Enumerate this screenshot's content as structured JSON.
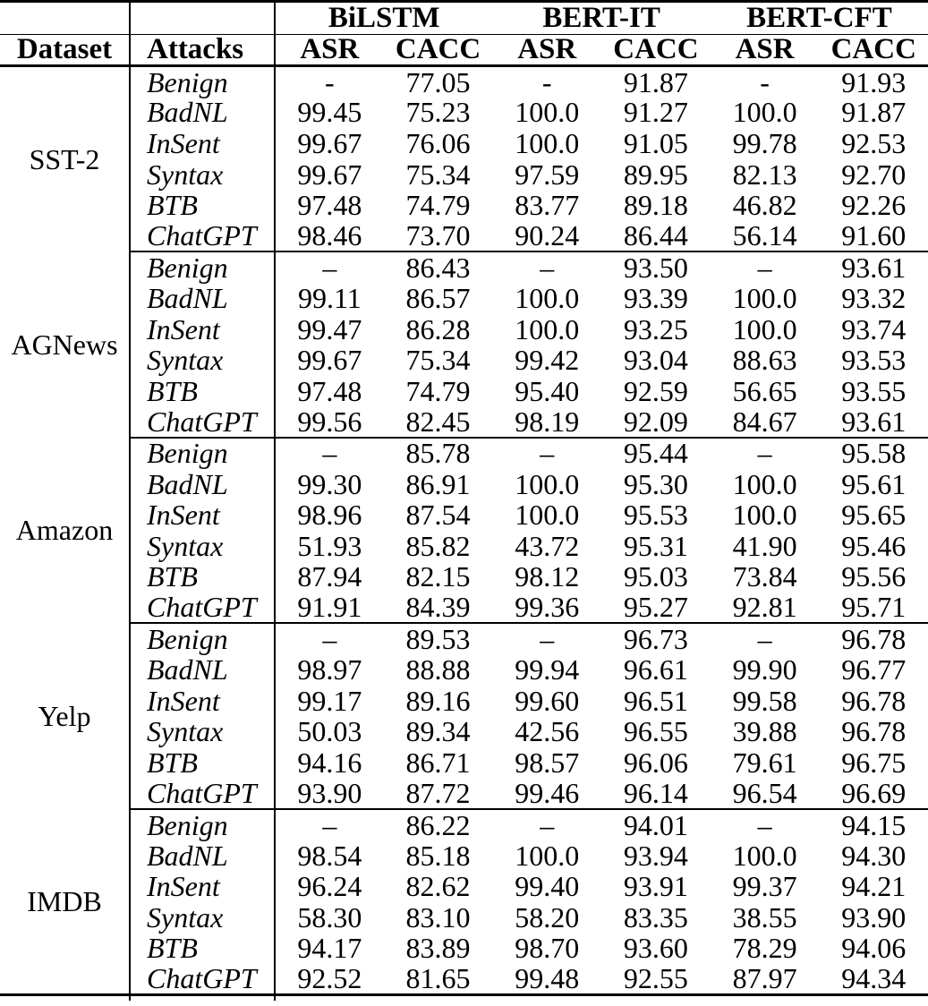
{
  "colors": {
    "ink": "#000000",
    "background": "#ffffff"
  },
  "table": {
    "model_headers": [
      "BiLSTM",
      "BERT-IT",
      "BERT-CFT"
    ],
    "sub_headers": {
      "dataset": "Dataset",
      "attacks": "Attacks",
      "metrics": [
        "ASR",
        "CACC",
        "ASR",
        "CACC",
        "ASR",
        "CACC"
      ]
    },
    "groups": [
      {
        "dataset": "SST-2",
        "rows": [
          {
            "attack": "Benign",
            "values": [
              "-",
              "77.05",
              "-",
              "91.87",
              "-",
              "91.93"
            ]
          },
          {
            "attack": "BadNL",
            "values": [
              "99.45",
              "75.23",
              "100.0",
              "91.27",
              "100.0",
              "91.87"
            ]
          },
          {
            "attack": "InSent",
            "values": [
              "99.67",
              "76.06",
              "100.0",
              "91.05",
              "99.78",
              "92.53"
            ]
          },
          {
            "attack": "Syntax",
            "values": [
              "99.67",
              "75.34",
              "97.59",
              "89.95",
              "82.13",
              "92.70"
            ]
          },
          {
            "attack": "BTB",
            "values": [
              "97.48",
              "74.79",
              "83.77",
              "89.18",
              "46.82",
              "92.26"
            ]
          },
          {
            "attack": "ChatGPT",
            "values": [
              "98.46",
              "73.70",
              "90.24",
              "86.44",
              "56.14",
              "91.60"
            ]
          }
        ]
      },
      {
        "dataset": "AGNews",
        "rows": [
          {
            "attack": "Benign",
            "values": [
              "–",
              "86.43",
              "–",
              "93.50",
              "–",
              "93.61"
            ]
          },
          {
            "attack": "BadNL",
            "values": [
              "99.11",
              "86.57",
              "100.0",
              "93.39",
              "100.0",
              "93.32"
            ]
          },
          {
            "attack": "InSent",
            "values": [
              "99.47",
              "86.28",
              "100.0",
              "93.25",
              "100.0",
              "93.74"
            ]
          },
          {
            "attack": "Syntax",
            "values": [
              "99.67",
              "75.34",
              "99.42",
              "93.04",
              "88.63",
              "93.53"
            ]
          },
          {
            "attack": "BTB",
            "values": [
              "97.48",
              "74.79",
              "95.40",
              "92.59",
              "56.65",
              "93.55"
            ]
          },
          {
            "attack": "ChatGPT",
            "values": [
              "99.56",
              "82.45",
              "98.19",
              "92.09",
              "84.67",
              "93.61"
            ]
          }
        ]
      },
      {
        "dataset": "Amazon",
        "rows": [
          {
            "attack": "Benign",
            "values": [
              "–",
              "85.78",
              "–",
              "95.44",
              "–",
              "95.58"
            ]
          },
          {
            "attack": "BadNL",
            "values": [
              "99.30",
              "86.91",
              "100.0",
              "95.30",
              "100.0",
              "95.61"
            ]
          },
          {
            "attack": "InSent",
            "values": [
              "98.96",
              "87.54",
              "100.0",
              "95.53",
              "100.0",
              "95.65"
            ]
          },
          {
            "attack": "Syntax",
            "values": [
              "51.93",
              "85.82",
              "43.72",
              "95.31",
              "41.90",
              "95.46"
            ]
          },
          {
            "attack": "BTB",
            "values": [
              "87.94",
              "82.15",
              "98.12",
              "95.03",
              "73.84",
              "95.56"
            ]
          },
          {
            "attack": "ChatGPT",
            "values": [
              "91.91",
              "84.39",
              "99.36",
              "95.27",
              "92.81",
              "95.71"
            ]
          }
        ]
      },
      {
        "dataset": "Yelp",
        "rows": [
          {
            "attack": "Benign",
            "values": [
              "–",
              "89.53",
              "–",
              "96.73",
              "–",
              "96.78"
            ]
          },
          {
            "attack": "BadNL",
            "values": [
              "98.97",
              "88.88",
              "99.94",
              "96.61",
              "99.90",
              "96.77"
            ]
          },
          {
            "attack": "InSent",
            "values": [
              "99.17",
              "89.16",
              "99.60",
              "96.51",
              "99.58",
              "96.78"
            ]
          },
          {
            "attack": "Syntax",
            "values": [
              "50.03",
              "89.34",
              "42.56",
              "96.55",
              "39.88",
              "96.78"
            ]
          },
          {
            "attack": "BTB",
            "values": [
              "94.16",
              "86.71",
              "98.57",
              "96.06",
              "79.61",
              "96.75"
            ]
          },
          {
            "attack": "ChatGPT",
            "values": [
              "93.90",
              "87.72",
              "99.46",
              "96.14",
              "96.54",
              "96.69"
            ]
          }
        ]
      },
      {
        "dataset": "IMDB",
        "rows": [
          {
            "attack": "Benign",
            "values": [
              "–",
              "86.22",
              "–",
              "94.01",
              "–",
              "94.15"
            ]
          },
          {
            "attack": "BadNL",
            "values": [
              "98.54",
              "85.18",
              "100.0",
              "93.94",
              "100.0",
              "94.30"
            ]
          },
          {
            "attack": "InSent",
            "values": [
              "96.24",
              "82.62",
              "99.40",
              "93.91",
              "99.37",
              "94.21"
            ]
          },
          {
            "attack": "Syntax",
            "values": [
              "58.30",
              "83.10",
              "58.20",
              "83.35",
              "38.55",
              "93.90"
            ]
          },
          {
            "attack": "BTB",
            "values": [
              "94.17",
              "83.89",
              "98.70",
              "93.60",
              "78.29",
              "94.06"
            ]
          },
          {
            "attack": "ChatGPT",
            "values": [
              "92.52",
              "81.65",
              "99.48",
              "92.55",
              "87.97",
              "94.34"
            ]
          }
        ]
      }
    ]
  }
}
